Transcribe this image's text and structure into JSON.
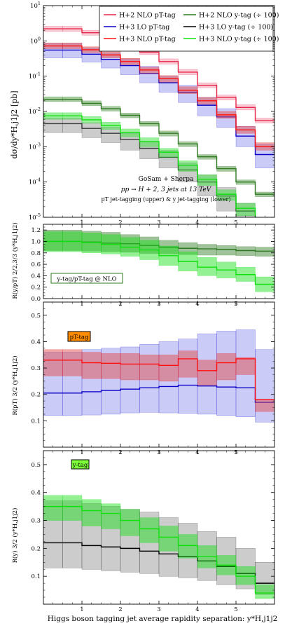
{
  "chart_data": {
    "type": "step-histogram",
    "xlabel": "Higgs boson tagging jet average rapidity separation:  y*H,j1j2",
    "xlim": [
      0,
      6
    ],
    "xticks": [
      "1",
      "2",
      "3",
      "4",
      "5"
    ],
    "bin_edges": [
      0,
      0.5,
      1,
      1.5,
      2,
      2.5,
      3,
      3.5,
      4,
      4.5,
      5,
      5.5,
      6
    ],
    "legend": [
      {
        "label": "H+2 NLO pT-tag",
        "color": "#e8264b"
      },
      {
        "label": "H+3 LO pT-tag",
        "color": "#0b00c8"
      },
      {
        "label": "H+3 NLO pT-tag",
        "color": "#ff1010"
      },
      {
        "label": "H+2 NLO y-tag (÷ 100)",
        "color": "#2f7a22"
      },
      {
        "label": "H+3 LO y-tag (÷ 100)",
        "color": "#000000"
      },
      {
        "label": "H+3 NLO y-tag (÷ 100)",
        "color": "#10e010"
      }
    ],
    "annotation": {
      "line1": "GoSam + Sherpa",
      "line2": "pp → H + 2, 3 jets at 13 TeV",
      "line3": "pT jet-tagging (upper) & y jet-tagging (lower)"
    },
    "panels": [
      {
        "id": "main",
        "ylabel": "dσ/dy*H,j1j2 [pb]",
        "yscale": "log",
        "ylim": [
          1e-05,
          10
        ],
        "yticks": [
          "10^-5",
          "10^-4",
          "10^-3",
          "10^-2",
          "10^-1",
          "10^0",
          "10^1"
        ],
        "series": [
          {
            "color": "#3a3a3a",
            "band_fill": "#9a9a9a",
            "band_opacity": 0.5,
            "center": [
              0.0045,
              0.0045,
              0.0033,
              0.0024,
              0.0016,
              0.0009,
              0.0005,
              0.00022,
              0.0001,
              4e-05,
              1.5e-05,
              3e-06
            ],
            "lo": [
              0.0025,
              0.0025,
              0.0018,
              0.0013,
              0.0008,
              0.00045,
              0.00025,
              0.0001,
              4e-05,
              1.5e-05,
              6e-06,
              1e-06
            ],
            "hi": [
              0.0065,
              0.0065,
              0.0048,
              0.0036,
              0.0024,
              0.0014,
              0.00078,
              0.00035,
              0.00016,
              7e-05,
              2.5e-05,
              6e-06
            ]
          },
          {
            "color": "#0b00c8",
            "band_fill": "#8c8cf0",
            "band_opacity": 0.45,
            "center": [
              0.55,
              0.55,
              0.42,
              0.3,
              0.2,
              0.12,
              0.065,
              0.035,
              0.015,
              0.007,
              0.002,
              0.0006
            ],
            "lo": [
              0.33,
              0.33,
              0.25,
              0.17,
              0.11,
              0.065,
              0.035,
              0.018,
              0.0075,
              0.0035,
              0.001,
              0.00025
            ],
            "hi": [
              0.85,
              0.85,
              0.64,
              0.46,
              0.31,
              0.19,
              0.1,
              0.055,
              0.025,
              0.012,
              0.0038,
              0.0012
            ]
          },
          {
            "color": "#2f7a22",
            "band_fill": "#3c8a2e",
            "band_opacity": 0.45,
            "center": [
              0.022,
              0.022,
              0.017,
              0.012,
              0.0078,
              0.0045,
              0.0024,
              0.0012,
              0.00052,
              0.00024,
              0.0001,
              4.5e-05
            ],
            "lo": [
              0.019,
              0.019,
              0.0145,
              0.0102,
              0.0066,
              0.0038,
              0.002,
              0.001,
              0.00044,
              0.0002,
              8.5e-05,
              3.8e-05
            ],
            "hi": [
              0.026,
              0.026,
              0.02,
              0.014,
              0.009,
              0.0052,
              0.0028,
              0.0014,
              0.0006,
              0.00028,
              0.000115,
              5.2e-05
            ]
          },
          {
            "color": "#10e010",
            "band_fill": "#39e039",
            "band_opacity": 0.5,
            "center": [
              0.0075,
              0.0075,
              0.0058,
              0.004,
              0.0025,
              0.0014,
              0.0007,
              0.0003,
              0.00012,
              4.5e-05,
              1.8e-05,
              4e-06
            ],
            "lo": [
              0.006,
              0.006,
              0.0046,
              0.0031,
              0.0019,
              0.001,
              0.0005,
              0.0002,
              8e-05,
              3e-05,
              1.1e-05,
              2e-06
            ],
            "hi": [
              0.0092,
              0.0092,
              0.0072,
              0.005,
              0.0032,
              0.0018,
              0.0009,
              0.0004,
              0.00016,
              6e-05,
              2.5e-05,
              6e-06
            ]
          },
          {
            "color": "#e8264b",
            "band_fill": "#f07a92",
            "band_opacity": 0.4,
            "center": [
              2.2,
              2.2,
              1.7,
              1.2,
              0.8,
              0.48,
              0.26,
              0.13,
              0.055,
              0.025,
              0.013,
              0.0055
            ],
            "lo": [
              1.85,
              1.85,
              1.45,
              1.02,
              0.68,
              0.41,
              0.22,
              0.11,
              0.047,
              0.021,
              0.011,
              0.0047
            ],
            "hi": [
              2.6,
              2.6,
              2.0,
              1.42,
              0.95,
              0.57,
              0.31,
              0.155,
              0.065,
              0.029,
              0.0155,
              0.0065
            ]
          },
          {
            "color": "#ff1010",
            "band_fill": "#e05050",
            "band_opacity": 0.5,
            "center": [
              0.72,
              0.72,
              0.56,
              0.4,
              0.26,
              0.15,
              0.085,
              0.04,
              0.02,
              0.008,
              0.003,
              0.001
            ],
            "lo": [
              0.6,
              0.6,
              0.46,
              0.33,
              0.21,
              0.12,
              0.068,
              0.032,
              0.016,
              0.0064,
              0.0024,
              0.0008
            ],
            "hi": [
              0.88,
              0.88,
              0.68,
              0.49,
              0.32,
              0.18,
              0.104,
              0.05,
              0.025,
              0.01,
              0.0038,
              0.0013
            ]
          }
        ]
      },
      {
        "id": "ratio-2",
        "ylabel": "R(y/pT) 2/2,3/3 (y*H,j1j2)",
        "yscale": "linear",
        "ylim": [
          0,
          1.3
        ],
        "yticks": [
          "0.0",
          "0.2",
          "0.4",
          "0.6",
          "0.8",
          "1.0",
          "1.2"
        ],
        "tag_label": "y-tag/pT-tag @ NLO",
        "tag_bg": "#ffffff",
        "tag_border": "#2f7a22",
        "series": [
          {
            "color": "#2f7a22",
            "band_fill": "#2f7a22",
            "band_opacity": 0.45,
            "center": [
              1.0,
              1.0,
              0.99,
              0.97,
              0.96,
              0.93,
              0.9,
              0.88,
              0.87,
              0.86,
              0.84,
              0.83
            ],
            "lo": [
              0.84,
              0.84,
              0.83,
              0.82,
              0.81,
              0.79,
              0.78,
              0.77,
              0.76,
              0.76,
              0.75,
              0.74
            ],
            "hi": [
              1.2,
              1.2,
              1.18,
              1.16,
              1.12,
              1.08,
              1.02,
              0.98,
              0.95,
              0.93,
              0.91,
              0.9
            ]
          },
          {
            "color": "#10e010",
            "band_fill": "#10e010",
            "band_opacity": 0.45,
            "center": [
              1.0,
              1.0,
              0.98,
              0.95,
              0.9,
              0.85,
              0.75,
              0.65,
              0.55,
              0.5,
              0.42,
              0.25
            ],
            "lo": [
              0.82,
              0.82,
              0.8,
              0.78,
              0.74,
              0.68,
              0.58,
              0.48,
              0.4,
              0.36,
              0.3,
              0.12
            ],
            "hi": [
              1.17,
              1.17,
              1.15,
              1.12,
              1.07,
              1.02,
              0.92,
              0.82,
              0.72,
              0.64,
              0.55,
              0.38
            ]
          }
        ]
      },
      {
        "id": "ratio-pt",
        "ylabel": "R(pT) 3/2 (y*H,j1j2)",
        "yscale": "linear",
        "ylim": [
          0,
          0.55
        ],
        "yticks": [
          "0.1",
          "0.2",
          "0.3",
          "0.4",
          "0.5"
        ],
        "tag_label": "pT-tag",
        "tag_bg": "#ff8c00",
        "tag_border": "#000000",
        "series": [
          {
            "color": "#0b00c8",
            "band_fill": "#8c8cf0",
            "band_opacity": 0.45,
            "center": [
              0.205,
              0.205,
              0.21,
              0.215,
              0.22,
              0.225,
              0.23,
              0.235,
              0.232,
              0.228,
              0.225,
              0.17
            ],
            "lo": [
              0.12,
              0.12,
              0.122,
              0.125,
              0.13,
              0.132,
              0.13,
              0.128,
              0.125,
              0.12,
              0.115,
              0.095
            ],
            "hi": [
              0.36,
              0.36,
              0.37,
              0.375,
              0.38,
              0.39,
              0.4,
              0.41,
              0.43,
              0.44,
              0.445,
              0.37
            ]
          },
          {
            "color": "#ff1010",
            "band_fill": "#e05050",
            "band_opacity": 0.5,
            "center": [
              0.33,
              0.33,
              0.32,
              0.318,
              0.315,
              0.315,
              0.31,
              0.335,
              0.29,
              0.32,
              0.335,
              0.18
            ],
            "lo": [
              0.27,
              0.27,
              0.26,
              0.26,
              0.255,
              0.255,
              0.25,
              0.265,
              0.235,
              0.255,
              0.275,
              0.135
            ],
            "hi": [
              0.37,
              0.37,
              0.36,
              0.355,
              0.355,
              0.35,
              0.35,
              0.365,
              0.33,
              0.355,
              0.34,
              0.18
            ]
          }
        ]
      },
      {
        "id": "ratio-y",
        "ylabel": "R(y) 3/2 (y*H,j1j2)",
        "yscale": "linear",
        "ylim": [
          0,
          0.55
        ],
        "yticks": [
          "0.1",
          "0.2",
          "0.3",
          "0.4",
          "0.5"
        ],
        "tag_label": "y-tag",
        "tag_bg": "#7dff3a",
        "tag_border": "#000000",
        "series": [
          {
            "color": "#000000",
            "band_fill": "#9a9a9a",
            "band_opacity": 0.5,
            "center": [
              0.22,
              0.22,
              0.21,
              0.205,
              0.2,
              0.19,
              0.18,
              0.17,
              0.155,
              0.135,
              0.11,
              0.075
            ],
            "lo": [
              0.13,
              0.13,
              0.125,
              0.12,
              0.115,
              0.11,
              0.1,
              0.095,
              0.085,
              0.07,
              0.055,
              0.035
            ],
            "hi": [
              0.37,
              0.37,
              0.36,
              0.35,
              0.34,
              0.33,
              0.31,
              0.29,
              0.26,
              0.24,
              0.2,
              0.15
            ]
          },
          {
            "color": "#10e010",
            "band_fill": "#10e010",
            "band_opacity": 0.45,
            "center": [
              0.35,
              0.35,
              0.335,
              0.325,
              0.3,
              0.27,
              0.24,
              0.21,
              0.17,
              0.14,
              0.1,
              0.04
            ],
            "lo": [
              0.3,
              0.3,
              0.28,
              0.27,
              0.245,
              0.22,
              0.19,
              0.165,
              0.13,
              0.105,
              0.07,
              0.02
            ],
            "hi": [
              0.39,
              0.39,
              0.375,
              0.36,
              0.34,
              0.31,
              0.28,
              0.25,
              0.21,
              0.175,
              0.135,
              0.07
            ]
          }
        ]
      }
    ]
  }
}
